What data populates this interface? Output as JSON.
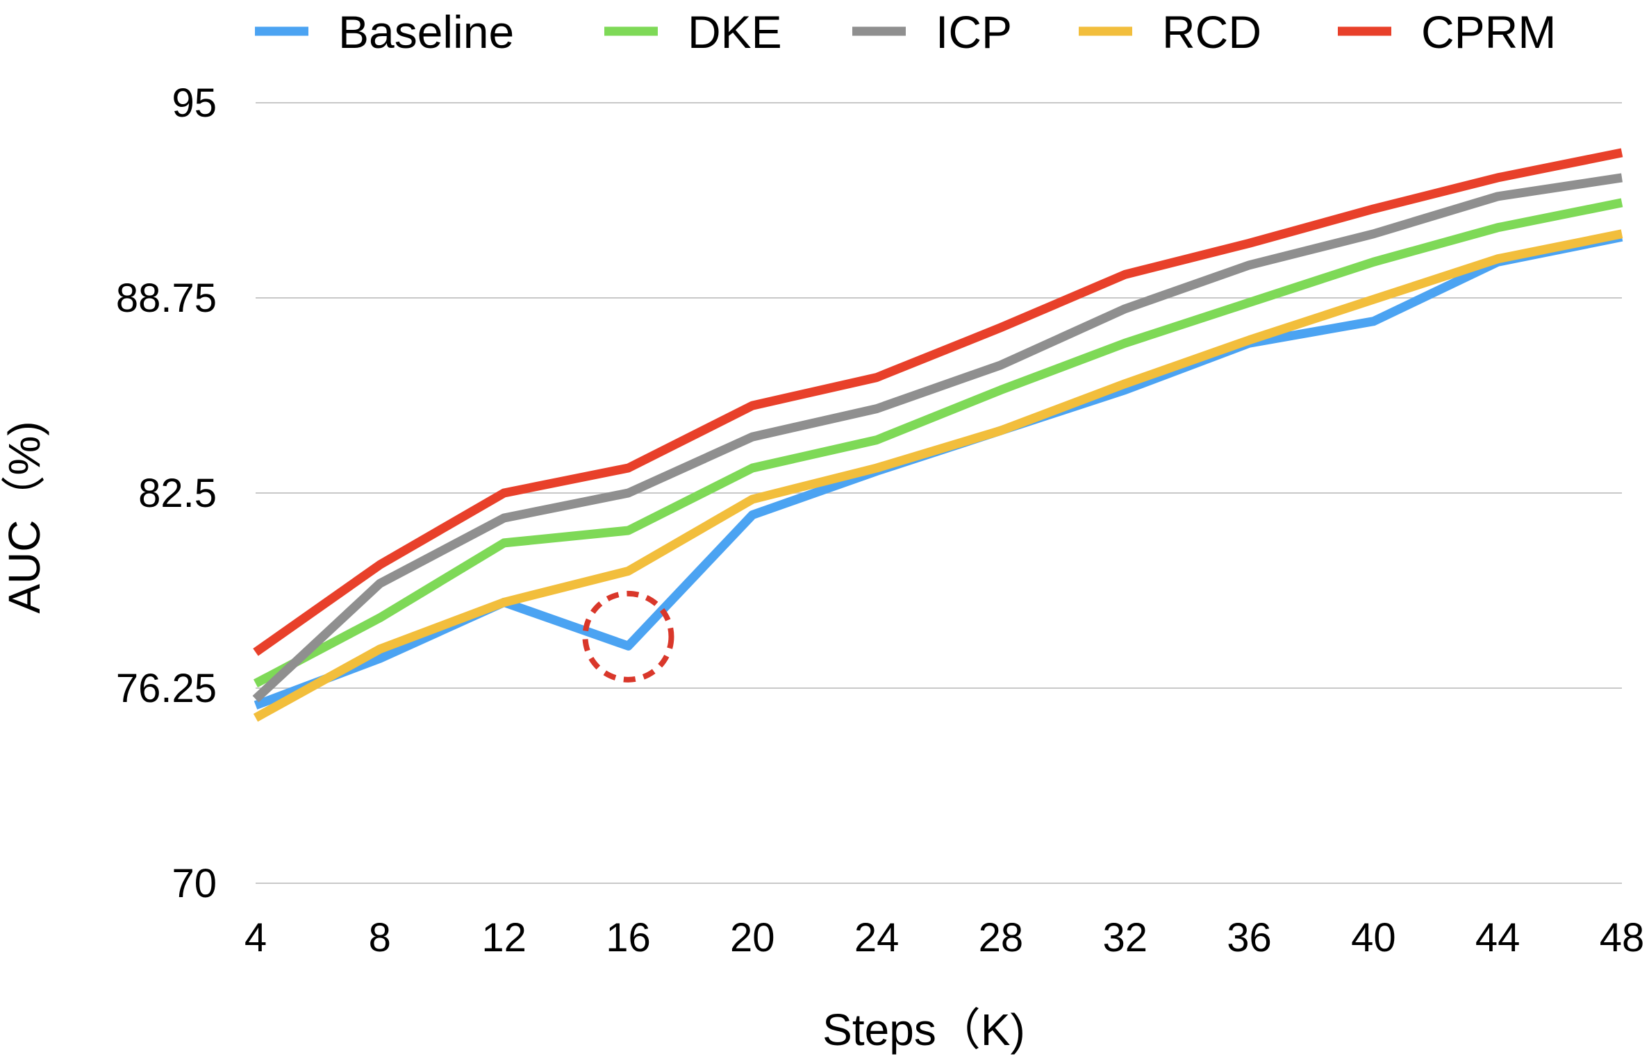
{
  "chart_data": {
    "type": "line",
    "xlabel": "Steps（K)",
    "ylabel": "AUC（%)",
    "x": [
      4,
      8,
      12,
      16,
      20,
      24,
      28,
      32,
      36,
      40,
      44,
      48
    ],
    "xlim": [
      4,
      48
    ],
    "ylim": [
      70,
      95
    ],
    "y_ticks": [
      "70",
      "76.25",
      "82.5",
      "88.75",
      "95"
    ],
    "y_tick_values": [
      70,
      76.25,
      82.5,
      88.75,
      95
    ],
    "x_ticks": [
      "4",
      "8",
      "12",
      "16",
      "20",
      "24",
      "28",
      "32",
      "36",
      "40",
      "44",
      "48"
    ],
    "grid": true,
    "legend_position": "top",
    "series": [
      {
        "name": "Baseline",
        "color": "#4BA3F2",
        "values": [
          75.7,
          77.2,
          79.0,
          77.6,
          81.8,
          83.2,
          84.5,
          85.8,
          87.3,
          88.0,
          89.9,
          90.7
        ]
      },
      {
        "name": "DKE",
        "color": "#7ED957",
        "values": [
          76.4,
          78.5,
          80.9,
          81.3,
          83.3,
          84.2,
          85.8,
          87.3,
          88.6,
          89.9,
          91.0,
          91.8
        ]
      },
      {
        "name": "ICP",
        "color": "#8F8F8F",
        "values": [
          75.9,
          79.6,
          81.7,
          82.5,
          84.3,
          85.2,
          86.6,
          88.4,
          89.8,
          90.8,
          92.0,
          92.6
        ]
      },
      {
        "name": "RCD",
        "color": "#F2BE3C",
        "values": [
          75.3,
          77.5,
          79.0,
          80.0,
          82.3,
          83.3,
          84.5,
          86.0,
          87.4,
          88.7,
          90.0,
          90.8
        ]
      },
      {
        "name": "CPRM",
        "color": "#E8402A",
        "values": [
          77.4,
          80.2,
          82.5,
          83.3,
          85.3,
          86.2,
          87.8,
          89.5,
          90.5,
          91.6,
          92.6,
          93.4
        ]
      }
    ],
    "annotation": {
      "type": "dashed-circle",
      "color": "#D9372A",
      "x": 16,
      "y": 77.9
    }
  }
}
